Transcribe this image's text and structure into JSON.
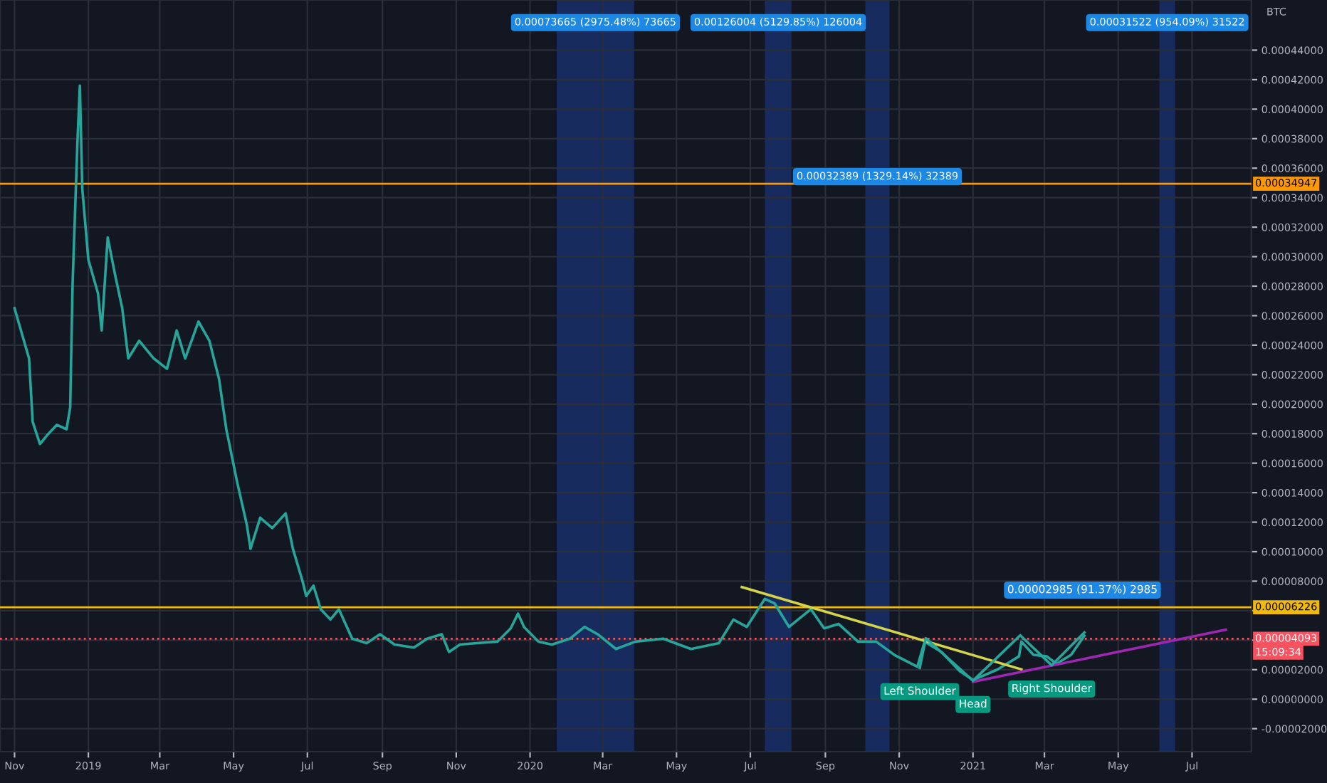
{
  "chart_data": {
    "type": "line",
    "xlim": [
      "2018-10-20",
      "2021-08-19"
    ],
    "ylim": [
      -3.56e-05,
      0.000474
    ],
    "xticks": [
      {
        "value": "2018-11-01",
        "label": "Nov"
      },
      {
        "value": "2019-01-01",
        "label": "2019"
      },
      {
        "value": "2019-03-01",
        "label": "Mar"
      },
      {
        "value": "2019-05-01",
        "label": "May"
      },
      {
        "value": "2019-07-01",
        "label": "Jul"
      },
      {
        "value": "2019-09-01",
        "label": "Sep"
      },
      {
        "value": "2019-11-01",
        "label": "Nov"
      },
      {
        "value": "2020-01-01",
        "label": "2020"
      },
      {
        "value": "2020-03-01",
        "label": "Mar"
      },
      {
        "value": "2020-05-01",
        "label": "May"
      },
      {
        "value": "2020-07-01",
        "label": "Jul"
      },
      {
        "value": "2020-09-01",
        "label": "Sep"
      },
      {
        "value": "2020-11-01",
        "label": "Nov"
      },
      {
        "value": "2021-01-01",
        "label": "2021"
      },
      {
        "value": "2021-03-01",
        "label": "Mar"
      },
      {
        "value": "2021-05-01",
        "label": "May"
      },
      {
        "value": "2021-07-01",
        "label": "Jul"
      }
    ],
    "yticks": [
      {
        "value": -2e-05,
        "label": "-0.00002000"
      },
      {
        "value": 0,
        "label": "0.00000000"
      },
      {
        "value": 2e-05,
        "label": "0.00002000"
      },
      {
        "value": 4e-05,
        "label": null
      },
      {
        "value": 6e-05,
        "label": null
      },
      {
        "value": 8e-05,
        "label": "0.00008000"
      },
      {
        "value": 0.0001,
        "label": "0.00010000"
      },
      {
        "value": 0.00012,
        "label": "0.00012000"
      },
      {
        "value": 0.00014,
        "label": "0.00014000"
      },
      {
        "value": 0.00016,
        "label": "0.00016000"
      },
      {
        "value": 0.00018,
        "label": "0.00018000"
      },
      {
        "value": 0.0002,
        "label": "0.00020000"
      },
      {
        "value": 0.00022,
        "label": "0.00022000"
      },
      {
        "value": 0.00024,
        "label": "0.00024000"
      },
      {
        "value": 0.00026,
        "label": "0.00026000"
      },
      {
        "value": 0.00028,
        "label": "0.00028000"
      },
      {
        "value": 0.0003,
        "label": "0.00030000"
      },
      {
        "value": 0.00032,
        "label": "0.00032000"
      },
      {
        "value": 0.00034,
        "label": "0.00034000"
      },
      {
        "value": 0.00036,
        "label": "0.00036000"
      },
      {
        "value": 0.00038,
        "label": "0.00038000"
      },
      {
        "value": 0.0004,
        "label": "0.00040000"
      },
      {
        "value": 0.00042,
        "label": "0.00042000"
      },
      {
        "value": 0.00044,
        "label": "0.00044000"
      }
    ],
    "grid": true,
    "series": [
      {
        "color": "#26a69a",
        "x": [
          "2018-11-01",
          "2018-11-13",
          "2018-11-16",
          "2018-11-22",
          "2018-11-28",
          "2018-12-06",
          "2018-12-14",
          "2018-12-17",
          "2018-12-19",
          "2018-12-23",
          "2018-12-25",
          "2018-12-27",
          "2019-01-01",
          "2019-01-09",
          "2019-01-12",
          "2019-01-17",
          "2019-01-23",
          "2019-01-29",
          "2019-02-03",
          "2019-02-12",
          "2019-02-24",
          "2019-03-07",
          "2019-03-15",
          "2019-03-22",
          "2019-04-02",
          "2019-04-11",
          "2019-04-19",
          "2019-04-25",
          "2019-05-04",
          "2019-05-12",
          "2019-05-15",
          "2019-05-23",
          "2019-06-02",
          "2019-06-13",
          "2019-06-19",
          "2019-06-27",
          "2019-06-30",
          "2019-07-06",
          "2019-07-12",
          "2019-07-20",
          "2019-07-27",
          "2019-08-07",
          "2019-08-19",
          "2019-08-30",
          "2019-09-11",
          "2019-09-27",
          "2019-10-08",
          "2019-10-20",
          "2019-10-26",
          "2019-11-04",
          "2019-11-18",
          "2019-12-05",
          "2019-12-16",
          "2019-12-22",
          "2019-12-27",
          "2020-01-08",
          "2020-01-19",
          "2020-02-03",
          "2020-02-15",
          "2020-02-26",
          "2020-03-12",
          "2020-03-28",
          "2020-04-20",
          "2020-05-13",
          "2020-06-05",
          "2020-06-17",
          "2020-06-28",
          "2020-07-13",
          "2020-07-21",
          "2020-08-02",
          "2020-08-20",
          "2020-08-31",
          "2020-09-12",
          "2020-09-28",
          "2020-10-13",
          "2020-10-28",
          "2020-11-16",
          "2020-11-22",
          "2020-12-06",
          "2020-12-21",
          "2021-01-01",
          "2021-01-21",
          "2021-02-08",
          "2021-02-10",
          "2021-02-20",
          "2021-03-03",
          "2021-03-11",
          "2021-03-23",
          "2021-04-03"
        ],
        "values": [
          0.000265,
          0.000231,
          0.000188,
          0.000173,
          0.000179,
          0.000186,
          0.000183,
          0.000198,
          0.000282,
          0.000378,
          0.000416,
          0.000346,
          0.000298,
          0.000275,
          0.00025,
          0.000313,
          0.000288,
          0.000265,
          0.000231,
          0.000243,
          0.000231,
          0.000224,
          0.00025,
          0.000231,
          0.000256,
          0.000243,
          0.000217,
          0.000183,
          0.000147,
          0.000118,
          0.000102,
          0.000123,
          0.000116,
          0.000126,
          0.000102,
          8e-05,
          7e-05,
          7.7e-05,
          6.1e-05,
          5.4e-05,
          6.1e-05,
          4.1e-05,
          3.8e-05,
          4.4e-05,
          3.7e-05,
          3.5e-05,
          4.1e-05,
          4.4e-05,
          3.2e-05,
          3.7e-05,
          3.8e-05,
          3.9e-05,
          4.8e-05,
          5.8e-05,
          4.9e-05,
          3.9e-05,
          3.7e-05,
          4.1e-05,
          4.9e-05,
          4.4e-05,
          3.4e-05,
          3.9e-05,
          4.1e-05,
          3.4e-05,
          3.8e-05,
          5.4e-05,
          4.9e-05,
          6.8e-05,
          6.5e-05,
          4.9e-05,
          6.1e-05,
          4.8e-05,
          5.1e-05,
          3.9e-05,
          3.9e-05,
          3e-05,
          2.2e-05,
          3.9e-05,
          3.2e-05,
          1.9e-05,
          1.3e-05,
          2e-05,
          2.9e-05,
          3.9e-05,
          3e-05,
          2.9e-05,
          2.4e-05,
          3e-05,
          4.3e-05
        ]
      },
      {
        "color": "#d4d44a",
        "x": [
          "2020-06-24",
          "2021-02-10"
        ],
        "values": [
          7.6e-05,
          2.02e-05
        ]
      },
      {
        "color": "#9c27b0",
        "x": [
          "2021-01-01",
          "2021-07-29"
        ],
        "values": [
          1.18e-05,
          4.71e-05
        ]
      },
      {
        "color": "#26a69a",
        "x": [
          "2020-11-18",
          "2020-11-23",
          "2021-01-01",
          "2021-02-09",
          "2021-03-07",
          "2021-04-03"
        ],
        "values": [
          2.12e-05,
          4.13e-05,
          1.25e-05,
          4.33e-05,
          2.3e-05,
          4.52e-05
        ]
      }
    ],
    "ref_lines": [
      {
        "axis": "y",
        "value": 0.00034947,
        "label": "0.00034947",
        "color": "#ff9800",
        "line_style": "solid"
      },
      {
        "axis": "y",
        "value": 6.226e-05,
        "label": "0.00006226",
        "color": "#f0b90b",
        "line_style": "solid"
      },
      {
        "axis": "y",
        "value": 4.093e-05,
        "label": "0.00004093",
        "color": "#f7525f",
        "line_style": "dotted"
      }
    ],
    "bands": [
      {
        "axis": "x",
        "from": "2020-01-23",
        "to": "2020-03-27",
        "label": "0.00073665 (2975.48%) 73665",
        "color": "#2962ff"
      },
      {
        "axis": "x",
        "from": "2020-07-13",
        "to": "2020-08-04",
        "label": "0.00126004 (5129.85%) 126004",
        "color": "#2962ff"
      },
      {
        "axis": "x",
        "from": "2020-10-04",
        "to": "2020-10-24",
        "label": "0.00032389 (1329.14%) 32389",
        "color": "#2962ff"
      },
      {
        "axis": "x",
        "from": "2021-06-04",
        "to": "2021-06-17",
        "label": "0.00031522 (954.09%) 31522",
        "color": "#2962ff"
      }
    ],
    "annotations": [
      {
        "text": "Left Shoulder",
        "x": "2020-11-18",
        "y": 2.12e-05
      },
      {
        "text": "Head",
        "x": "2021-01-01",
        "y": 1.25e-05
      },
      {
        "text": "Right Shoulder",
        "x": "2021-03-07",
        "y": 2.3e-05
      },
      "0.00002985 (91.37%) 2985",
      "BTC",
      "15:09:34"
    ]
  }
}
